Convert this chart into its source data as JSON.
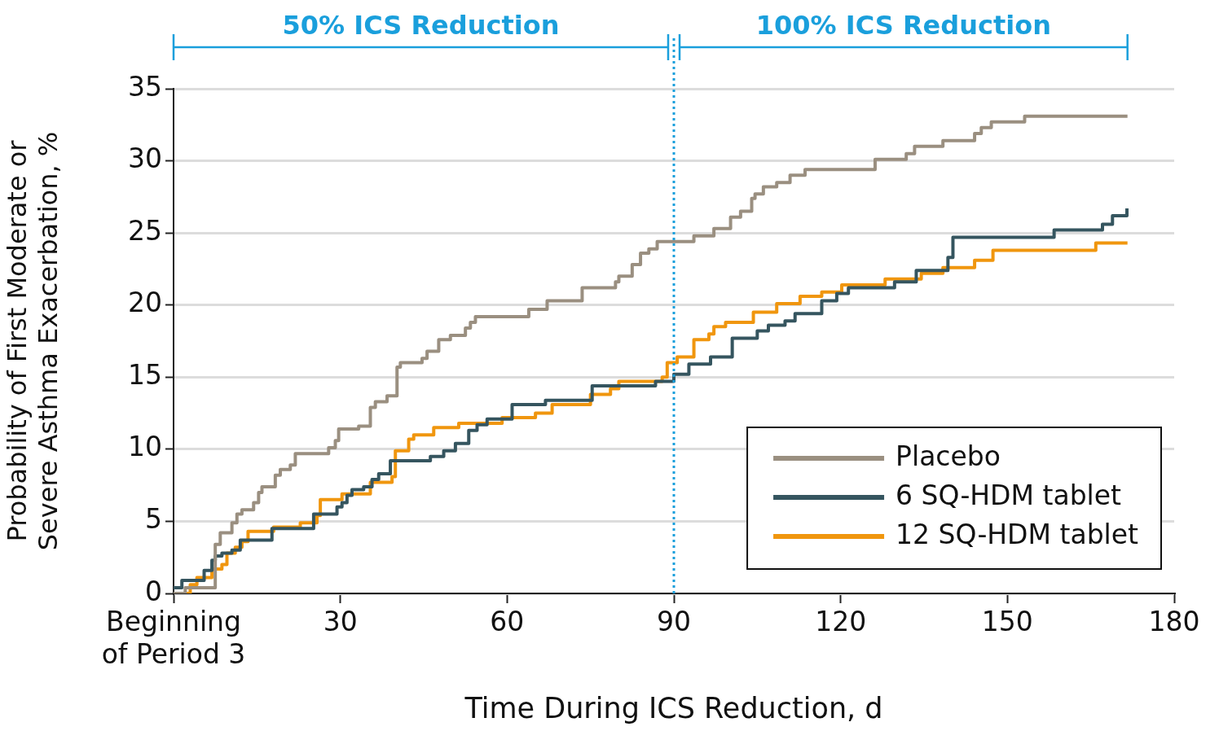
{
  "chart_data": {
    "type": "step",
    "xlabel": "Time During ICS Reduction, d",
    "ylabel": "Probability of First Moderate or\nSevere Asthma Exacerbation, %",
    "xlim": [
      0,
      180
    ],
    "xticks": [
      {
        "value": 0,
        "label": "Beginning\nof Period 3"
      },
      30,
      60,
      90,
      120,
      150,
      180
    ],
    "ylim": [
      0,
      35
    ],
    "yticks": [
      0,
      5,
      10,
      15,
      20,
      25,
      30,
      35
    ],
    "grid": "y",
    "legend": "bottom right",
    "ref_lines": [
      {
        "axis": "x",
        "value": 90,
        "color": "#1a9fdc",
        "line_style": "dotted"
      }
    ],
    "annotations": [
      "50% ICS Reduction",
      "100% ICS Reduction"
    ],
    "series": [
      {
        "name": "Placebo",
        "color": "#9a8f80",
        "x": [
          0,
          2.1,
          7.5,
          8.4,
          10.5,
          11.4,
          12.3,
          14.4,
          15.3,
          15.9,
          18.3,
          19.2,
          21,
          21.9,
          27.9,
          29.1,
          29.7,
          33.3,
          35.4,
          36.3,
          38.4,
          40.2,
          40.8,
          44.7,
          45.6,
          47.7,
          49.8,
          52.5,
          53.4,
          54.3,
          63.9,
          67.2,
          73.5,
          79.5,
          80.1,
          82.5,
          84,
          85.5,
          87,
          93.6,
          97.2,
          100.2,
          102,
          104,
          104.6,
          106.1,
          108.5,
          110.9,
          113.6,
          126.2,
          131.8,
          133.3,
          138.4,
          144.1,
          145.3,
          147.1,
          153.1,
          171.6
        ],
        "values": [
          0,
          0.4,
          3.4,
          4.2,
          4.9,
          5.5,
          5.8,
          6.3,
          7.0,
          7.4,
          8.2,
          8.6,
          8.9,
          9.7,
          10.1,
          10.6,
          11.4,
          11.6,
          12.9,
          13.3,
          13.7,
          15.7,
          16.0,
          16.3,
          16.8,
          17.6,
          17.9,
          18.4,
          18.8,
          19.2,
          19.7,
          20.3,
          21.2,
          21.6,
          22.0,
          22.8,
          23.6,
          23.9,
          24.4,
          24.8,
          25.3,
          26.1,
          26.5,
          27.4,
          27.7,
          28.2,
          28.5,
          29.0,
          29.4,
          30.1,
          30.5,
          31.0,
          31.4,
          31.9,
          32.3,
          32.7,
          33.1,
          33.1
        ]
      },
      {
        "name": "6 SQ-HDM tablet",
        "color": "#35555f",
        "x": [
          0,
          1.5,
          5.5,
          6.9,
          7.5,
          8.7,
          10.5,
          12,
          17.7,
          25.2,
          29.4,
          30.3,
          31.2,
          32.1,
          34.2,
          35.7,
          36.9,
          39,
          46.2,
          48.6,
          50.7,
          53.1,
          54.6,
          56.4,
          60.9,
          66.9,
          75.3,
          86.7,
          90,
          92.7,
          96.6,
          100.5,
          105,
          107,
          110,
          111.8,
          116.6,
          119.3,
          121.4,
          129.7,
          133.6,
          139.3,
          140.2,
          158.4,
          167.1,
          168.9,
          171.5
        ],
        "values": [
          0.4,
          0.9,
          1.6,
          2.3,
          2.6,
          2.8,
          3.0,
          3.7,
          4.5,
          5.5,
          6.0,
          6.3,
          6.8,
          7.2,
          7.4,
          7.9,
          8.3,
          9.2,
          9.5,
          9.9,
          10.4,
          11.3,
          11.7,
          12.1,
          13.1,
          13.4,
          14.4,
          14.7,
          15.2,
          15.9,
          16.4,
          17.7,
          18.2,
          18.6,
          18.9,
          19.4,
          20.3,
          20.8,
          21.2,
          21.6,
          22.4,
          23.3,
          24.7,
          25.2,
          25.6,
          26.2,
          26.7
        ]
      },
      {
        "name": "12 SQ-HDM tablet",
        "color": "#f0960e",
        "x": [
          0,
          3,
          4.2,
          6.9,
          8.7,
          9.6,
          11.1,
          12.3,
          13.4,
          18,
          22.8,
          25.8,
          26.4,
          30.3,
          35.4,
          39.3,
          39.9,
          42.3,
          43.2,
          46.8,
          51.3,
          59.1,
          65.1,
          68.1,
          75,
          78.6,
          80.1,
          87.9,
          88.8,
          90.6,
          93.6,
          96.3,
          97.2,
          99.3,
          104.3,
          108.5,
          112.7,
          116.6,
          120.2,
          128,
          134.5,
          138.4,
          144.1,
          147.4,
          165.9,
          171.6
        ],
        "values": [
          0,
          0.6,
          1.1,
          1.7,
          2.0,
          2.8,
          3.2,
          3.6,
          4.3,
          4.6,
          4.9,
          5.4,
          6.5,
          6.9,
          7.7,
          8.1,
          9.9,
          10.7,
          11.0,
          11.5,
          11.8,
          12.2,
          12.5,
          13.1,
          13.8,
          14.2,
          14.7,
          15.0,
          16.0,
          16.4,
          17.6,
          18.0,
          18.5,
          18.8,
          19.5,
          20.1,
          20.6,
          20.9,
          21.4,
          21.8,
          22.2,
          22.6,
          23.1,
          23.8,
          24.3,
          24.3
        ]
      }
    ]
  }
}
